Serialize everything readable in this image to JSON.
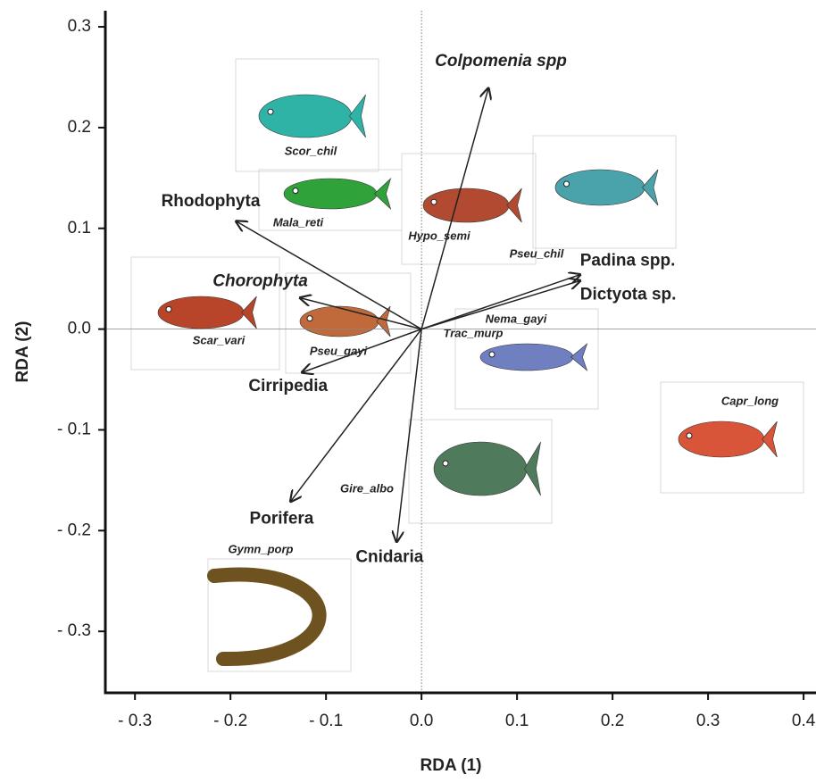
{
  "chart_data": {
    "type": "biplot",
    "x_label": "RDA (1)",
    "y_label": "RDA (2)",
    "xlim": [
      -0.331,
      0.413
    ],
    "ylim": [
      -0.361,
      0.316
    ],
    "xticks": [
      {
        "value": -0.3,
        "label": "- 0.3"
      },
      {
        "value": -0.2,
        "label": "- 0.2"
      },
      {
        "value": -0.1,
        "label": "- 0.1"
      },
      {
        "value": 0.0,
        "label": "0.0"
      },
      {
        "value": 0.1,
        "label": "0.1"
      },
      {
        "value": 0.2,
        "label": "0.2"
      },
      {
        "value": 0.3,
        "label": "0.3"
      },
      {
        "value": 0.4,
        "label": "0.4"
      }
    ],
    "yticks": [
      {
        "value": 0.3,
        "label": "0.3"
      },
      {
        "value": 0.2,
        "label": "0.2"
      },
      {
        "value": 0.1,
        "label": "0.1"
      },
      {
        "value": 0.0,
        "label": "0.0"
      },
      {
        "value": -0.1,
        "label": "- 0.1"
      },
      {
        "value": -0.2,
        "label": "- 0.2"
      },
      {
        "value": -0.3,
        "label": "- 0.3"
      }
    ],
    "arrows": [
      {
        "name": "Colpomenia spp",
        "x": 0.07,
        "y": 0.239
      },
      {
        "name": "Rhodophyta",
        "x": -0.194,
        "y": 0.107
      },
      {
        "name": "Chorophyta",
        "x": -0.127,
        "y": 0.031
      },
      {
        "name": "Cirripedia",
        "x": -0.125,
        "y": -0.043
      },
      {
        "name": "Porifera",
        "x": -0.137,
        "y": -0.171
      },
      {
        "name": "Cnidaria",
        "x": -0.026,
        "y": -0.211
      },
      {
        "name": "Padina spp.",
        "x": 0.166,
        "y": 0.054
      },
      {
        "name": "Dictyota sp.",
        "x": 0.166,
        "y": 0.048
      }
    ],
    "species": [
      "Scor_chil",
      "Mala_reti",
      "Hypo_semi",
      "Pseu_chil",
      "Scar_vari",
      "Pseu_gayi",
      "Nema_gayi",
      "Trac_murp",
      "Capr_long",
      "Gire_albo",
      "Gymn_porp"
    ]
  }
}
